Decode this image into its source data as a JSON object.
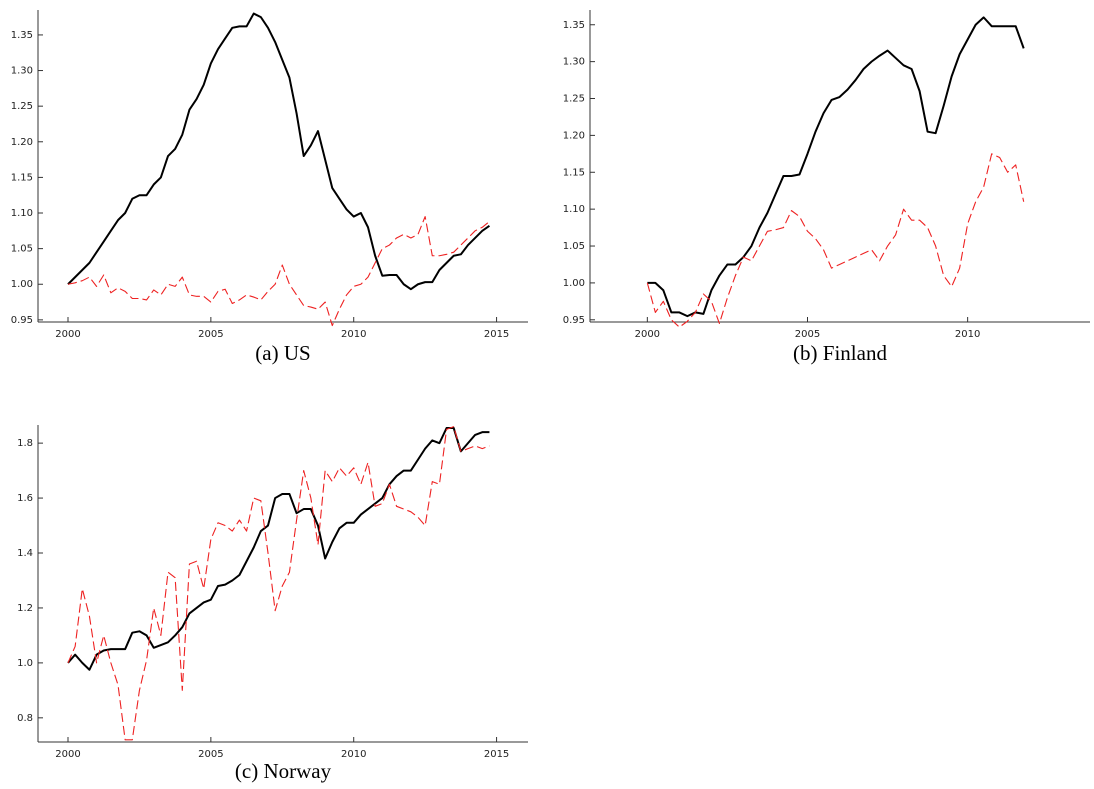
{
  "chart_data": [
    {
      "type": "line",
      "title": "(a) US",
      "x": [
        2000,
        2000.25,
        2000.5,
        2000.75,
        2001,
        2001.25,
        2001.5,
        2001.75,
        2002,
        2002.25,
        2002.5,
        2002.75,
        2003,
        2003.25,
        2003.5,
        2003.75,
        2004,
        2004.25,
        2004.5,
        2004.75,
        2005,
        2005.25,
        2005.5,
        2005.75,
        2006,
        2006.25,
        2006.5,
        2006.75,
        2007,
        2007.25,
        2007.5,
        2007.75,
        2008,
        2008.25,
        2008.5,
        2008.75,
        2009,
        2009.25,
        2009.5,
        2009.75,
        2010,
        2010.25,
        2010.5,
        2010.75,
        2011,
        2011.25,
        2011.5,
        2011.75,
        2012,
        2012.25,
        2012.5,
        2012.75,
        2013,
        2013.25,
        2013.5,
        2013.75,
        2014,
        2014.25,
        2014.5,
        2014.75
      ],
      "series": [
        {
          "color": "#000000",
          "dash": false,
          "values": [
            1.0,
            1.01,
            1.02,
            1.03,
            1.045,
            1.06,
            1.075,
            1.09,
            1.1,
            1.12,
            1.125,
            1.125,
            1.14,
            1.15,
            1.18,
            1.19,
            1.21,
            1.245,
            1.26,
            1.28,
            1.31,
            1.33,
            1.345,
            1.36,
            1.362,
            1.362,
            1.38,
            1.375,
            1.36,
            1.34,
            1.315,
            1.29,
            1.24,
            1.18,
            1.195,
            1.215,
            1.175,
            1.135,
            1.12,
            1.105,
            1.095,
            1.1,
            1.08,
            1.04,
            1.012,
            1.013,
            1.013,
            1.0,
            0.993,
            1.0,
            1.003,
            1.003,
            1.02,
            1.03,
            1.04,
            1.042,
            1.055,
            1.065,
            1.075,
            1.082
          ]
        },
        {
          "color": "#ee2222",
          "dash": true,
          "values": [
            1.0,
            1.002,
            1.005,
            1.01,
            0.997,
            1.013,
            0.988,
            0.995,
            0.99,
            0.98,
            0.98,
            0.978,
            0.992,
            0.985,
            1.0,
            0.997,
            1.01,
            0.985,
            0.983,
            0.983,
            0.975,
            0.99,
            0.993,
            0.973,
            0.978,
            0.985,
            0.982,
            0.978,
            0.99,
            1.0,
            1.027,
            1.0,
            0.985,
            0.97,
            0.968,
            0.965,
            0.975,
            0.942,
            0.965,
            0.985,
            0.997,
            1.0,
            1.01,
            1.03,
            1.05,
            1.055,
            1.065,
            1.07,
            1.065,
            1.07,
            1.095,
            1.04,
            1.04,
            1.042,
            1.045,
            1.055,
            1.065,
            1.075,
            1.08,
            1.088
          ]
        }
      ],
      "xlim": [
        1998.95,
        2016.1
      ],
      "ylim": [
        0.947,
        1.385
      ],
      "xticks": [
        2000,
        2005,
        2010,
        2015
      ],
      "yticks": [
        0.95,
        {
          "value": 1,
          "label": "1.00"
        },
        1.05,
        {
          "value": 1.1,
          "label": "1.10"
        },
        1.15,
        {
          "value": 1.2,
          "label": "1.20"
        },
        1.25,
        {
          "value": 1.3,
          "label": "1.30"
        },
        1.35
      ]
    },
    {
      "type": "line",
      "title": "(b) Finland",
      "x": [
        2000,
        2000.25,
        2000.5,
        2000.75,
        2001,
        2001.25,
        2001.5,
        2001.75,
        2002,
        2002.25,
        2002.5,
        2002.75,
        2003,
        2003.25,
        2003.5,
        2003.75,
        2004,
        2004.25,
        2004.5,
        2004.75,
        2005,
        2005.25,
        2005.5,
        2005.75,
        2006,
        2006.25,
        2006.5,
        2006.75,
        2007,
        2007.25,
        2007.5,
        2007.75,
        2008,
        2008.25,
        2008.5,
        2008.75,
        2009,
        2009.25,
        2009.5,
        2009.75,
        2010,
        2010.25,
        2010.5,
        2010.75,
        2011,
        2011.25,
        2011.5,
        2011.75
      ],
      "series": [
        {
          "color": "#000000",
          "dash": false,
          "values": [
            1.0,
            1.0,
            0.99,
            0.96,
            0.96,
            0.955,
            0.96,
            0.958,
            0.99,
            1.01,
            1.025,
            1.025,
            1.035,
            1.05,
            1.075,
            1.095,
            1.12,
            1.145,
            1.145,
            1.147,
            1.175,
            1.205,
            1.23,
            1.248,
            1.252,
            1.262,
            1.275,
            1.29,
            1.3,
            1.308,
            1.315,
            1.305,
            1.295,
            1.29,
            1.26,
            1.205,
            1.203,
            1.24,
            1.28,
            1.31,
            1.33,
            1.35,
            1.36,
            1.348,
            1.348,
            1.348,
            1.348,
            1.318
          ]
        },
        {
          "color": "#ee2222",
          "dash": true,
          "values": [
            1.0,
            0.96,
            0.975,
            0.95,
            0.94,
            0.948,
            0.96,
            0.985,
            0.975,
            0.945,
            0.98,
            1.01,
            1.035,
            1.03,
            1.05,
            1.07,
            1.072,
            1.075,
            1.098,
            1.09,
            1.07,
            1.06,
            1.045,
            1.02,
            1.025,
            1.03,
            1.035,
            1.04,
            1.045,
            1.03,
            1.05,
            1.065,
            1.1,
            1.085,
            1.085,
            1.075,
            1.05,
            1.01,
            0.995,
            1.02,
            1.08,
            1.11,
            1.13,
            1.175,
            1.17,
            1.15,
            1.16,
            1.11
          ]
        }
      ],
      "xlim": [
        1998.21,
        2013.82
      ],
      "ylim": [
        0.947,
        1.37
      ],
      "xticks": [
        2000,
        2005,
        2010
      ],
      "yticks": [
        0.95,
        {
          "value": 1,
          "label": "1.00"
        },
        1.05,
        {
          "value": 1.1,
          "label": "1.10"
        },
        1.15,
        {
          "value": 1.2,
          "label": "1.20"
        },
        1.25,
        {
          "value": 1.3,
          "label": "1.30"
        },
        1.35
      ]
    },
    {
      "type": "line",
      "title": "(c) Norway",
      "x": [
        2000,
        2000.25,
        2000.5,
        2000.75,
        2001,
        2001.25,
        2001.5,
        2001.75,
        2002,
        2002.25,
        2002.5,
        2002.75,
        2003,
        2003.25,
        2003.5,
        2003.75,
        2004,
        2004.25,
        2004.5,
        2004.75,
        2005,
        2005.25,
        2005.5,
        2005.75,
        2006,
        2006.25,
        2006.5,
        2006.75,
        2007,
        2007.25,
        2007.5,
        2007.75,
        2008,
        2008.25,
        2008.5,
        2008.75,
        2009,
        2009.25,
        2009.5,
        2009.75,
        2010,
        2010.25,
        2010.5,
        2010.75,
        2011,
        2011.25,
        2011.5,
        2011.75,
        2012,
        2012.25,
        2012.5,
        2012.75,
        2013,
        2013.25,
        2013.5,
        2013.75,
        2014,
        2014.25,
        2014.5,
        2014.75
      ],
      "series": [
        {
          "color": "#000000",
          "dash": false,
          "values": [
            1.0,
            1.03,
            1.0,
            0.975,
            1.03,
            1.045,
            1.05,
            1.05,
            1.05,
            1.11,
            1.115,
            1.1,
            1.055,
            1.065,
            1.075,
            1.1,
            1.13,
            1.18,
            1.2,
            1.22,
            1.23,
            1.28,
            1.285,
            1.3,
            1.32,
            1.37,
            1.42,
            1.48,
            1.5,
            1.6,
            1.615,
            1.615,
            1.545,
            1.56,
            1.56,
            1.5,
            1.38,
            1.44,
            1.49,
            1.51,
            1.51,
            1.54,
            1.56,
            1.58,
            1.6,
            1.65,
            1.68,
            1.7,
            1.7,
            1.74,
            1.78,
            1.81,
            1.8,
            1.855,
            1.855,
            1.77,
            1.8,
            1.83,
            1.84,
            1.84
          ]
        },
        {
          "color": "#ee2222",
          "dash": true,
          "values": [
            1.0,
            1.06,
            1.27,
            1.17,
            1.0,
            1.1,
            1.0,
            0.92,
            0.72,
            0.72,
            0.9,
            1.01,
            1.2,
            1.1,
            1.33,
            1.31,
            0.9,
            1.36,
            1.37,
            1.27,
            1.45,
            1.51,
            1.5,
            1.48,
            1.52,
            1.48,
            1.6,
            1.59,
            1.4,
            1.19,
            1.28,
            1.33,
            1.52,
            1.7,
            1.6,
            1.43,
            1.7,
            1.66,
            1.71,
            1.68,
            1.71,
            1.65,
            1.73,
            1.57,
            1.58,
            1.65,
            1.57,
            1.56,
            1.55,
            1.53,
            1.5,
            1.66,
            1.65,
            1.85,
            1.86,
            1.77,
            1.78,
            1.79,
            1.78,
            1.79
          ]
        }
      ],
      "xlim": [
        1998.95,
        2016.1
      ],
      "ylim": [
        0.712,
        1.866
      ],
      "xticks": [
        2000,
        2005,
        2010,
        2015
      ],
      "yticks": [
        {
          "value": 0.8,
          "label": "0.8"
        },
        {
          "value": 1,
          "label": "1.0"
        },
        1.2,
        1.4,
        1.6,
        1.8
      ]
    }
  ]
}
